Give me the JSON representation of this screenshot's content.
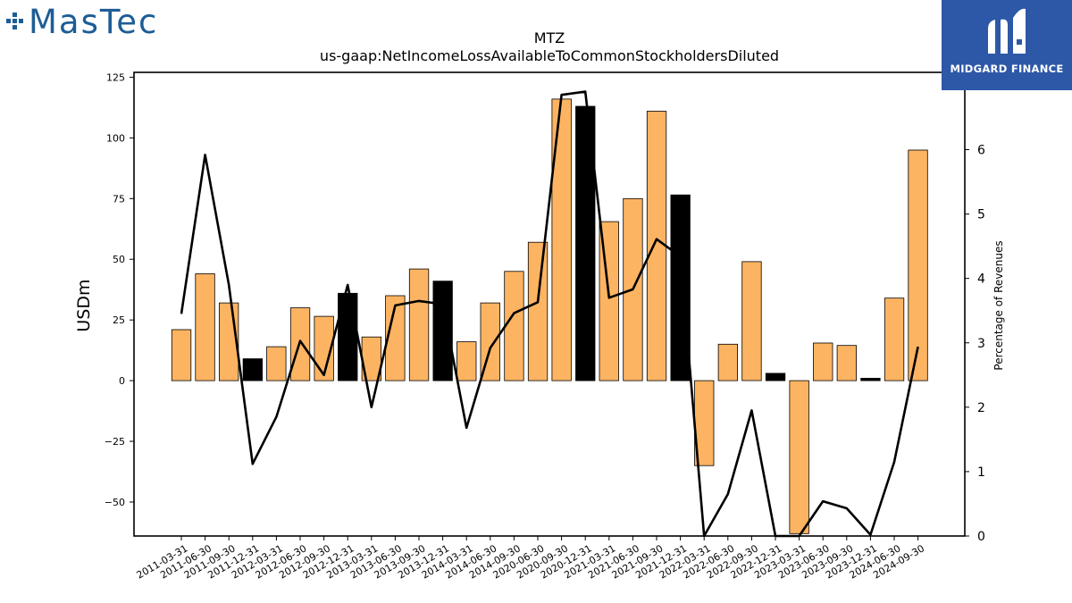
{
  "brand_left": "MasTec",
  "brand_right": "MIDGARD FINANCE",
  "colors": {
    "positive": "#fdb462",
    "highlight": "#000000",
    "line": "#000000",
    "brand_left": "#1d5d96",
    "brand_right_bg": "#2d58a8"
  },
  "chart_data": {
    "type": "bar",
    "title": "MTZ",
    "subtitle": "us-gaap:NetIncomeLossAvailableToCommonStockholdersDiluted",
    "ylabel": "USDm",
    "y2label": "Percentage of Revenues",
    "ylim": [
      -64,
      127
    ],
    "y2lim": [
      0,
      7.2
    ],
    "yticks": [
      -50,
      -25,
      0,
      25,
      50,
      75,
      100,
      125
    ],
    "y2ticks": [
      0,
      1,
      2,
      3,
      4,
      5,
      6,
      7
    ],
    "grid": false,
    "categories": [
      "2011-03-31",
      "2011-06-30",
      "2011-09-30",
      "2011-12-31",
      "2012-03-31",
      "2012-06-30",
      "2012-09-30",
      "2012-12-31",
      "2013-03-31",
      "2013-06-30",
      "2013-09-30",
      "2013-12-31",
      "2014-03-31",
      "2014-06-30",
      "2014-09-30",
      "2020-06-30",
      "2020-09-30",
      "2020-12-31",
      "2021-03-31",
      "2021-06-30",
      "2021-09-30",
      "2021-12-31",
      "2022-03-31",
      "2022-06-30",
      "2022-09-30",
      "2022-12-31",
      "2023-03-31",
      "2023-06-30",
      "2023-09-30",
      "2023-12-31",
      "2024-06-30",
      "2024-09-30"
    ],
    "series": [
      {
        "kind": "bar",
        "values": [
          21,
          44,
          32,
          9,
          14,
          30,
          26.5,
          36,
          18,
          35,
          46,
          41,
          16,
          32,
          45,
          57,
          116,
          113,
          65.5,
          75,
          111,
          76.5,
          -35,
          15,
          49,
          3,
          -63,
          15.5,
          14.5,
          1,
          34,
          95
        ],
        "highlight": [
          false,
          false,
          false,
          true,
          false,
          false,
          false,
          true,
          false,
          false,
          false,
          true,
          false,
          false,
          false,
          false,
          false,
          true,
          false,
          false,
          false,
          true,
          false,
          false,
          false,
          true,
          false,
          false,
          false,
          true,
          false,
          false
        ]
      },
      {
        "kind": "line",
        "axis": "right",
        "values": [
          3.45,
          5.92,
          3.9,
          1.12,
          1.85,
          3.03,
          2.5,
          3.9,
          2.0,
          3.58,
          3.65,
          3.6,
          1.68,
          2.92,
          3.46,
          3.63,
          6.85,
          6.9,
          3.7,
          3.83,
          4.61,
          4.34,
          -0.5,
          0.65,
          1.95,
          -0.1,
          -0.3,
          0.54,
          0.43,
          0.02,
          1.15,
          2.94
        ]
      }
    ]
  }
}
